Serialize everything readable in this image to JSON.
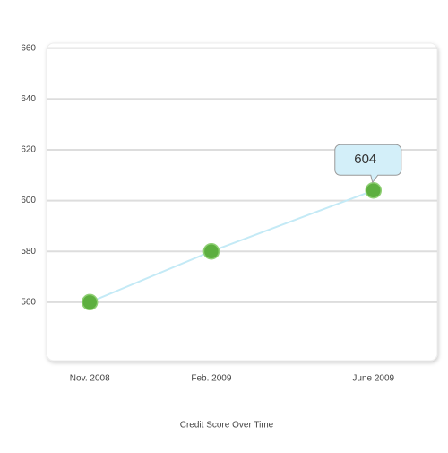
{
  "chart_data": {
    "type": "line",
    "title": "Credit Score Over Time",
    "x": [
      "2008-11",
      "2009-02",
      "2009-06"
    ],
    "xticks": [
      {
        "value": "2008-11",
        "label": "Nov. 2008"
      },
      {
        "value": "2009-02",
        "label": "Feb. 2009"
      },
      {
        "value": "2009-06",
        "label": "June  2009"
      }
    ],
    "xlim": [
      "2008-10",
      "2009-07"
    ],
    "values": [
      560,
      580,
      604
    ],
    "color": "#5daf3f",
    "line_color": "#c4eaf6",
    "ylim": [
      537,
      662
    ],
    "yticks": [
      560,
      580,
      600,
      620,
      640,
      660
    ],
    "grid": true,
    "highlight": 2
  }
}
